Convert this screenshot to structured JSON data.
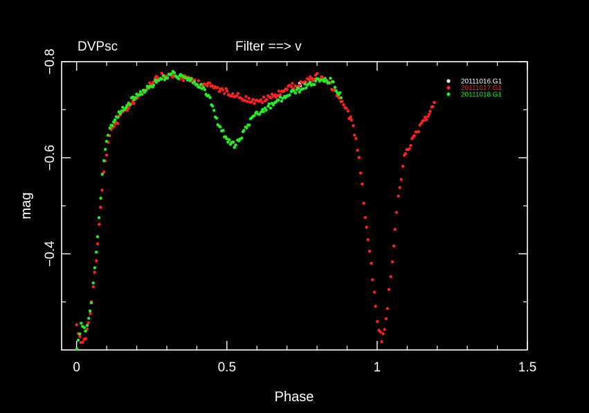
{
  "header": {
    "object": "DVPsc",
    "filter": "Filter ==> v"
  },
  "chart_data": {
    "type": "scatter",
    "title": "",
    "xlabel": "Phase",
    "ylabel": "mag",
    "xlim": [
      -0.05,
      1.5
    ],
    "ylim": [
      -0.2,
      -0.8
    ],
    "y_inverted": true,
    "xticks": [
      0,
      0.5,
      1,
      1.5
    ],
    "xtick_labels": [
      "0",
      "0.5",
      "1",
      "1.5"
    ],
    "yticks": [
      -0.4,
      -0.6,
      -0.8
    ],
    "ytick_labels": [
      "−0.4",
      "−0.6",
      "−0.8"
    ],
    "grid": false,
    "legend_position": "top-right",
    "colors": {
      "background": "#000000",
      "axes": "#ffffff",
      "text": "#ffffff"
    },
    "series": [
      {
        "name": "20111016.G1",
        "color": "#ffffff",
        "points": [
          [
            0.737,
            -0.745
          ],
          [
            0.742,
            -0.755
          ],
          [
            0.745,
            -0.75
          ]
        ]
      },
      {
        "name": "20111017.G1",
        "color": "#ff2020",
        "anchors": [
          [
            0.0,
            -0.25
          ],
          [
            0.015,
            -0.22
          ],
          [
            0.03,
            -0.22
          ],
          [
            0.05,
            -0.3
          ],
          [
            0.07,
            -0.42
          ],
          [
            0.09,
            -0.57
          ],
          [
            0.11,
            -0.65
          ],
          [
            0.15,
            -0.69
          ],
          [
            0.2,
            -0.725
          ],
          [
            0.27,
            -0.77
          ],
          [
            0.32,
            -0.77
          ],
          [
            0.36,
            -0.765
          ],
          [
            0.42,
            -0.755
          ],
          [
            0.6,
            -0.715
          ],
          [
            0.66,
            -0.73
          ],
          [
            0.7,
            -0.745
          ],
          [
            0.75,
            -0.755
          ],
          [
            0.8,
            -0.77
          ],
          [
            0.84,
            -0.755
          ],
          [
            0.88,
            -0.72
          ],
          [
            0.92,
            -0.67
          ],
          [
            0.94,
            -0.6
          ],
          [
            0.96,
            -0.48
          ],
          [
            0.98,
            -0.38
          ],
          [
            1.0,
            -0.26
          ],
          [
            1.015,
            -0.22
          ],
          [
            1.03,
            -0.26
          ],
          [
            1.05,
            -0.38
          ],
          [
            1.07,
            -0.52
          ],
          [
            1.09,
            -0.6
          ],
          [
            1.12,
            -0.64
          ],
          [
            1.16,
            -0.68
          ],
          [
            1.19,
            -0.715
          ]
        ]
      },
      {
        "name": "20111018.G1",
        "color": "#22ee22",
        "anchors": [
          [
            0.0,
            -0.2
          ],
          [
            0.015,
            -0.25
          ],
          [
            0.03,
            -0.24
          ],
          [
            0.05,
            -0.3
          ],
          [
            0.07,
            -0.44
          ],
          [
            0.09,
            -0.6
          ],
          [
            0.11,
            -0.66
          ],
          [
            0.15,
            -0.7
          ],
          [
            0.2,
            -0.73
          ],
          [
            0.27,
            -0.76
          ],
          [
            0.32,
            -0.775
          ],
          [
            0.36,
            -0.765
          ],
          [
            0.4,
            -0.755
          ],
          [
            0.44,
            -0.73
          ],
          [
            0.47,
            -0.67
          ],
          [
            0.5,
            -0.64
          ],
          [
            0.525,
            -0.625
          ],
          [
            0.545,
            -0.64
          ],
          [
            0.57,
            -0.67
          ],
          [
            0.6,
            -0.69
          ],
          [
            0.65,
            -0.71
          ],
          [
            0.7,
            -0.73
          ],
          [
            0.75,
            -0.745
          ],
          [
            0.8,
            -0.76
          ],
          [
            0.85,
            -0.76
          ],
          [
            0.88,
            -0.725
          ]
        ]
      }
    ]
  }
}
